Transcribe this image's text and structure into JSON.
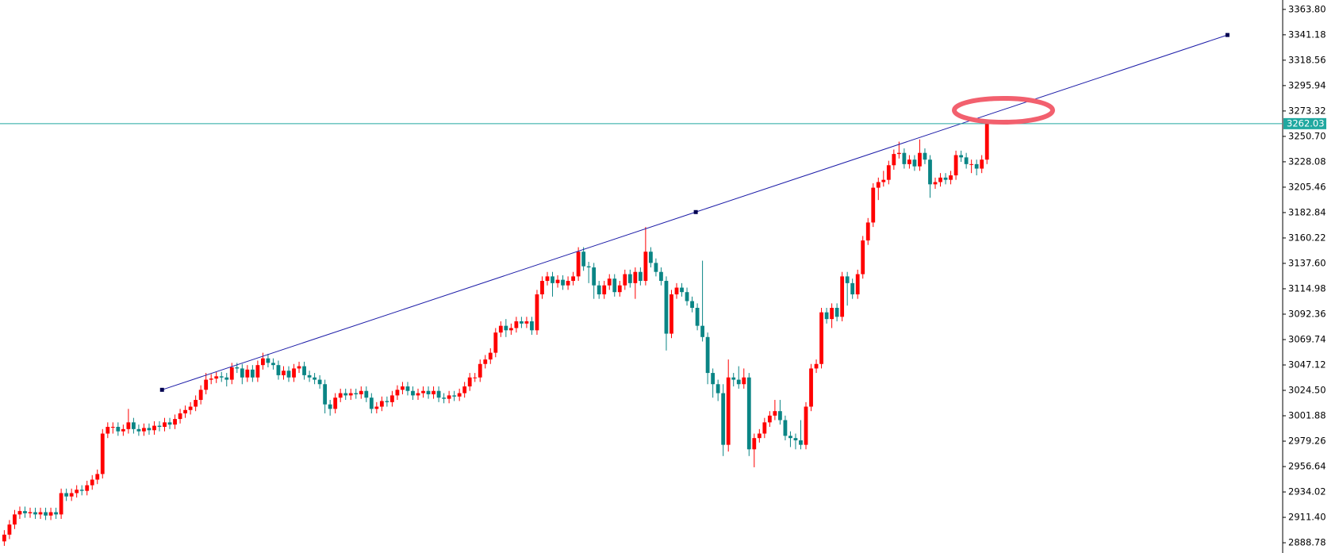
{
  "chart_data": {
    "type": "candlestick",
    "open": [
      2890,
      2896,
      2905,
      2914,
      2917,
      2915,
      2916,
      2914,
      2916,
      2913,
      2916,
      2914,
      2933,
      2930,
      2933,
      2936,
      2935,
      2940,
      2945,
      2950,
      2986,
      2992,
      2992,
      2988,
      2990,
      2996,
      2990,
      2988,
      2991,
      2989,
      2993,
      2992,
      2996,
      2994,
      2999,
      3004,
      3007,
      3010,
      3016,
      3025,
      3034,
      3035,
      3037,
      3036,
      3034,
      3045,
      3044,
      3036,
      3043,
      3036,
      3047,
      3053,
      3049,
      3047,
      3038,
      3042,
      3036,
      3044,
      3046,
      3038,
      3036,
      3034,
      3030,
      3012,
      3008,
      3018,
      3022,
      3020,
      3022,
      3021,
      3024,
      3018,
      3008,
      3010,
      3015,
      3014,
      3020,
      3025,
      3028,
      3024,
      3020,
      3022,
      3024,
      3021,
      3024,
      3018,
      3017,
      3020,
      3019,
      3022,
      3028,
      3036,
      3036,
      3048,
      3052,
      3058,
      3076,
      3082,
      3078,
      3080,
      3086,
      3084,
      3086,
      3078,
      3110,
      3122,
      3126,
      3120,
      3123,
      3118,
      3122,
      3126,
      3148,
      3135,
      3134,
      3118,
      3110,
      3118,
      3124,
      3112,
      3118,
      3128,
      3120,
      3130,
      3122,
      3148,
      3138,
      3130,
      3122,
      3075,
      3110,
      3116,
      3112,
      3104,
      3098,
      3082,
      3072,
      3040,
      3030,
      3022,
      2976,
      3036,
      3034,
      3030,
      3036,
      2972,
      2982,
      2986,
      2996,
      3002,
      3006,
      2998,
      2984,
      2982,
      2980,
      2976,
      3010,
      3044,
      3048,
      3094,
      3088,
      3098,
      3090,
      3126,
      3120,
      3110,
      3128,
      3158,
      3174,
      3205,
      3210,
      3212,
      3225,
      3235,
      3236,
      3226,
      3230,
      3224,
      3236,
      3230,
      3208,
      3210,
      3214,
      3212,
      3216,
      3234,
      3232,
      3226,
      3226,
      3222,
      3230
    ],
    "high": [
      2900,
      2909,
      2918,
      2921,
      2921,
      2920,
      2920,
      2920,
      2920,
      2920,
      2920,
      2937,
      2937,
      2937,
      2940,
      2940,
      2944,
      2949,
      2954,
      2990,
      2996,
      2996,
      2996,
      2994,
      3008,
      3000,
      2994,
      2995,
      2995,
      2997,
      2997,
      3000,
      3000,
      3003,
      3008,
      3011,
      3014,
      3020,
      3029,
      3040,
      3039,
      3041,
      3041,
      3040,
      3049,
      3049,
      3048,
      3047,
      3047,
      3051,
      3058,
      3057,
      3053,
      3051,
      3046,
      3046,
      3048,
      3050,
      3050,
      3042,
      3040,
      3038,
      3034,
      3016,
      3022,
      3026,
      3026,
      3026,
      3026,
      3028,
      3028,
      3022,
      3014,
      3019,
      3019,
      3024,
      3029,
      3032,
      3032,
      3028,
      3026,
      3028,
      3028,
      3028,
      3028,
      3022,
      3024,
      3024,
      3026,
      3032,
      3040,
      3040,
      3052,
      3056,
      3062,
      3080,
      3086,
      3088,
      3084,
      3090,
      3090,
      3090,
      3090,
      3114,
      3126,
      3130,
      3130,
      3127,
      3127,
      3126,
      3130,
      3152,
      3152,
      3139,
      3138,
      3122,
      3122,
      3128,
      3128,
      3122,
      3132,
      3132,
      3134,
      3134,
      3170,
      3152,
      3142,
      3134,
      3126,
      3114,
      3120,
      3120,
      3116,
      3108,
      3102,
      3140,
      3076,
      3044,
      3034,
      3030,
      3052,
      3040,
      3046,
      3044,
      3040,
      2986,
      2990,
      3000,
      3006,
      3016,
      3016,
      3002,
      2988,
      2986,
      2998,
      3014,
      3048,
      3052,
      3098,
      3098,
      3102,
      3102,
      3130,
      3130,
      3124,
      3132,
      3162,
      3178,
      3209,
      3214,
      3220,
      3229,
      3239,
      3246,
      3240,
      3234,
      3234,
      3248,
      3240,
      3234,
      3214,
      3218,
      3218,
      3220,
      3238,
      3238,
      3236,
      3230,
      3230,
      3234,
      3264
    ],
    "low": [
      2886,
      2892,
      2901,
      2910,
      2911,
      2911,
      2910,
      2910,
      2909,
      2909,
      2910,
      2910,
      2926,
      2926,
      2929,
      2931,
      2931,
      2936,
      2941,
      2946,
      2982,
      2986,
      2984,
      2984,
      2986,
      2986,
      2984,
      2984,
      2985,
      2985,
      2988,
      2988,
      2990,
      2990,
      2995,
      3000,
      3003,
      3006,
      3012,
      3021,
      3030,
      3031,
      3032,
      3028,
      3030,
      3040,
      3030,
      3032,
      3032,
      3032,
      3043,
      3045,
      3043,
      3034,
      3034,
      3032,
      3032,
      3040,
      3034,
      3032,
      3030,
      3026,
      3004,
      3002,
      3004,
      3014,
      3016,
      3016,
      3017,
      3017,
      3014,
      3004,
      3004,
      3006,
      3010,
      3010,
      3016,
      3021,
      3020,
      3016,
      3016,
      3018,
      3017,
      3017,
      3014,
      3013,
      3013,
      3015,
      3015,
      3018,
      3024,
      3032,
      3032,
      3044,
      3048,
      3054,
      3072,
      3072,
      3074,
      3076,
      3080,
      3080,
      3074,
      3074,
      3106,
      3118,
      3108,
      3116,
      3114,
      3114,
      3118,
      3122,
      3131,
      3120,
      3106,
      3106,
      3106,
      3114,
      3108,
      3108,
      3114,
      3116,
      3106,
      3118,
      3118,
      3134,
      3126,
      3118,
      3060,
      3071,
      3106,
      3108,
      3100,
      3094,
      3078,
      3068,
      3030,
      3018,
      3015,
      2966,
      2970,
      3028,
      3026,
      3026,
      2966,
      2956,
      2978,
      2982,
      2992,
      2998,
      2994,
      2980,
      2974,
      2972,
      2972,
      2972,
      3006,
      3040,
      3044,
      3084,
      3080,
      3086,
      3086,
      3100,
      3106,
      3106,
      3124,
      3154,
      3170,
      3194,
      3206,
      3208,
      3221,
      3231,
      3222,
      3222,
      3220,
      3220,
      3226,
      3196,
      3204,
      3206,
      3208,
      3208,
      3212,
      3228,
      3222,
      3218,
      3216,
      3218,
      3226
    ],
    "close": [
      2896,
      2905,
      2914,
      2917,
      2915,
      2916,
      2914,
      2916,
      2913,
      2916,
      2914,
      2933,
      2930,
      2933,
      2936,
      2935,
      2940,
      2945,
      2950,
      2986,
      2992,
      2992,
      2988,
      2990,
      2996,
      2990,
      2988,
      2991,
      2989,
      2993,
      2992,
      2996,
      2994,
      2999,
      3004,
      3007,
      3010,
      3016,
      3025,
      3034,
      3035,
      3037,
      3036,
      3034,
      3045,
      3044,
      3036,
      3043,
      3036,
      3047,
      3053,
      3049,
      3047,
      3038,
      3042,
      3036,
      3044,
      3046,
      3038,
      3036,
      3034,
      3030,
      3012,
      3008,
      3018,
      3022,
      3020,
      3022,
      3021,
      3024,
      3018,
      3008,
      3010,
      3015,
      3014,
      3020,
      3025,
      3028,
      3024,
      3020,
      3022,
      3024,
      3021,
      3024,
      3018,
      3017,
      3020,
      3019,
      3022,
      3028,
      3036,
      3036,
      3048,
      3052,
      3058,
      3076,
      3082,
      3078,
      3080,
      3086,
      3084,
      3086,
      3078,
      3110,
      3122,
      3126,
      3120,
      3123,
      3118,
      3122,
      3126,
      3148,
      3135,
      3134,
      3118,
      3110,
      3118,
      3124,
      3112,
      3118,
      3128,
      3120,
      3130,
      3122,
      3148,
      3138,
      3130,
      3122,
      3075,
      3110,
      3116,
      3112,
      3104,
      3098,
      3082,
      3072,
      3040,
      3030,
      3022,
      2976,
      3036,
      3034,
      3030,
      3036,
      2972,
      2982,
      2986,
      2996,
      3002,
      3006,
      2998,
      2984,
      2982,
      2980,
      2976,
      3010,
      3044,
      3048,
      3094,
      3088,
      3098,
      3090,
      3126,
      3120,
      3110,
      3128,
      3158,
      3174,
      3205,
      3210,
      3212,
      3225,
      3235,
      3236,
      3226,
      3230,
      3224,
      3236,
      3230,
      3208,
      3210,
      3214,
      3212,
      3216,
      3234,
      3232,
      3226,
      3226,
      3222,
      3230,
      3262.03
    ],
    "up_color": "#ff0000",
    "down_color": "#0a8585",
    "ylim": [
      2879.65,
      3372.17
    ],
    "yticks": [
      {
        "value": 3363.8,
        "label": "3363.80"
      },
      3341.18,
      3318.56,
      3295.94,
      3273.32,
      {
        "value": 3250.7,
        "label": "3250.70"
      },
      3228.08,
      3205.46,
      3182.84,
      3160.22,
      {
        "value": 3137.6,
        "label": "3137.60"
      },
      3114.98,
      3092.36,
      3069.74,
      3047.12,
      {
        "value": 3024.5,
        "label": "3024.50"
      },
      3001.88,
      2979.26,
      2956.64,
      2934.02,
      {
        "value": 2911.4,
        "label": "2911.40"
      },
      2888.78
    ],
    "last_price": 3262.03,
    "last_price_color": "#20a8a0",
    "trendline": {
      "x": [
        30.5,
        133.7,
        236.5
      ],
      "values": [
        3025.0,
        3183.3,
        3341.0
      ],
      "color": "#1c1ca8"
    }
  }
}
